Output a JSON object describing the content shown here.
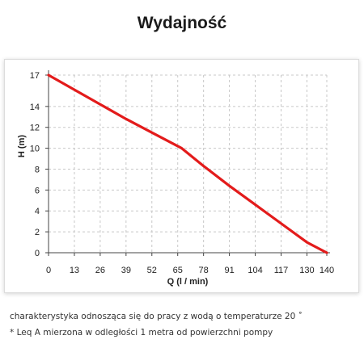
{
  "header": {
    "title": "Wydajność"
  },
  "chart_data": {
    "type": "line",
    "title": "Wydajność",
    "xlabel": "Q (l / min)",
    "ylabel": "H (m)",
    "x_ticks": [
      0,
      13,
      26,
      39,
      52,
      65,
      78,
      91,
      104,
      117,
      130,
      140
    ],
    "y_ticks": [
      0,
      2,
      4,
      6,
      8,
      10,
      12,
      14,
      17
    ],
    "xlim": [
      0,
      140
    ],
    "ylim": [
      0,
      17
    ],
    "grid": true,
    "line_color": "#e31b1b",
    "series": [
      {
        "x": [
          0,
          13,
          26,
          39,
          52,
          67,
          78,
          91,
          104,
          117,
          130,
          140
        ],
        "y": [
          17,
          15.6,
          14.2,
          12.8,
          11.5,
          10,
          8.3,
          6.4,
          4.6,
          2.8,
          1.0,
          0
        ]
      }
    ]
  },
  "footer": {
    "note1": "charakterystyka odnosząca się do pracy z wodą o temperaturze 20 ˚",
    "note2": "* Leq A mierzona w odległości 1 metra od powierzchni pompy"
  }
}
